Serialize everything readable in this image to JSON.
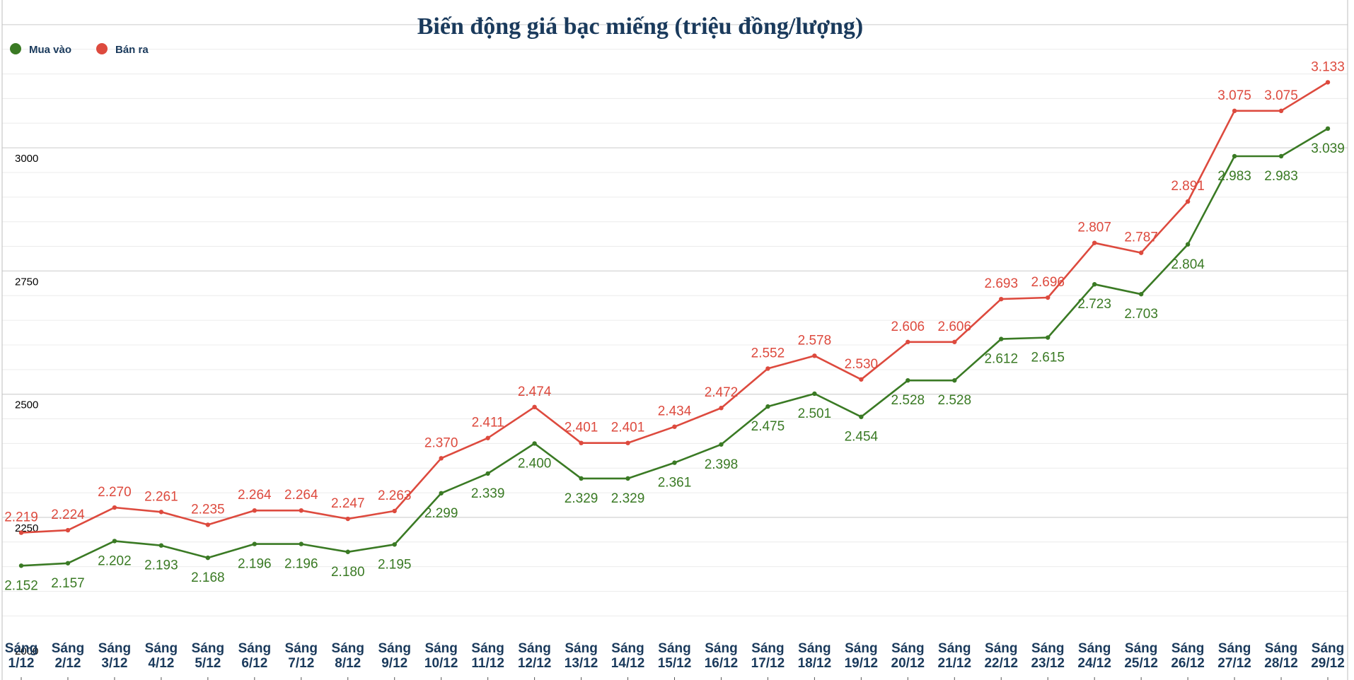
{
  "colors": {
    "buy": "#3a7a24",
    "sell": "#dd4a3e",
    "title": "#1a3a5c",
    "grid": "#d6d6d6",
    "grid_minor": "#ececec"
  },
  "chart_data": {
    "type": "line",
    "title": "Biến động giá bạc miếng (triệu đồng/lượng)",
    "xlabel": "",
    "ylabel": "",
    "ylim": [
      1920,
      3300
    ],
    "yticks": [
      2000,
      2250,
      2500,
      2750,
      3000
    ],
    "grid": true,
    "legend_position": "top-left",
    "categories": [
      [
        "Sáng",
        "1/12"
      ],
      [
        "Sáng",
        "2/12"
      ],
      [
        "Sáng",
        "3/12"
      ],
      [
        "Sáng",
        "4/12"
      ],
      [
        "Sáng",
        "5/12"
      ],
      [
        "Sáng",
        "6/12"
      ],
      [
        "Sáng",
        "7/12"
      ],
      [
        "Sáng",
        "8/12"
      ],
      [
        "Sáng",
        "9/12"
      ],
      [
        "Sáng",
        "10/12"
      ],
      [
        "Sáng",
        "11/12"
      ],
      [
        "Sáng",
        "12/12"
      ],
      [
        "Sáng",
        "13/12"
      ],
      [
        "Sáng",
        "14/12"
      ],
      [
        "Sáng",
        "15/12"
      ],
      [
        "Sáng",
        "16/12"
      ],
      [
        "Sáng",
        "17/12"
      ],
      [
        "Sáng",
        "18/12"
      ],
      [
        "Sáng",
        "19/12"
      ],
      [
        "Sáng",
        "20/12"
      ],
      [
        "Sáng",
        "21/12"
      ],
      [
        "Sáng",
        "22/12"
      ],
      [
        "Sáng",
        "23/12"
      ],
      [
        "Sáng",
        "24/12"
      ],
      [
        "Sáng",
        "25/12"
      ],
      [
        "Sáng",
        "26/12"
      ],
      [
        "Sáng",
        "27/12"
      ],
      [
        "Sáng",
        "28/12"
      ],
      [
        "Sáng",
        "29/12"
      ]
    ],
    "series": [
      {
        "name": "Mua vào",
        "key": "buy",
        "label_position": "below",
        "values": [
          2152,
          2157,
          2202,
          2193,
          2168,
          2196,
          2196,
          2180,
          2195,
          2299,
          2339,
          2400,
          2329,
          2329,
          2361,
          2398,
          2475,
          2501,
          2454,
          2528,
          2528,
          2612,
          2615,
          2723,
          2703,
          2804,
          2983,
          2983,
          3039
        ],
        "labels": [
          "2.152",
          "2.157",
          "2.202",
          "2.193",
          "2.168",
          "2.196",
          "2.196",
          "2.180",
          "2.195",
          "2.299",
          "2.339",
          "2.400",
          "2.329",
          "2.329",
          "2.361",
          "2.398",
          "2.475",
          "2.501",
          "2.454",
          "2.528",
          "2.528",
          "2.612",
          "2.615",
          "2.723",
          "2.703",
          "2.804",
          "2.983",
          "2.983",
          "3.039"
        ]
      },
      {
        "name": "Bán ra",
        "key": "sell",
        "label_position": "above",
        "values": [
          2219,
          2224,
          2270,
          2261,
          2235,
          2264,
          2264,
          2247,
          2263,
          2370,
          2411,
          2474,
          2401,
          2401,
          2434,
          2472,
          2552,
          2578,
          2530,
          2606,
          2606,
          2693,
          2696,
          2807,
          2787,
          2891,
          3075,
          3075,
          3133
        ],
        "labels": [
          "2.219",
          "2.224",
          "2.270",
          "2.261",
          "2.235",
          "2.264",
          "2.264",
          "2.247",
          "2.263",
          "2.370",
          "2.411",
          "2.474",
          "2.401",
          "2.401",
          "2.434",
          "2.472",
          "2.552",
          "2.578",
          "2.530",
          "2.606",
          "2.606",
          "2.693",
          "2.696",
          "2.807",
          "2.787",
          "2.891",
          "3.075",
          "3.075",
          "3.133"
        ]
      }
    ]
  }
}
